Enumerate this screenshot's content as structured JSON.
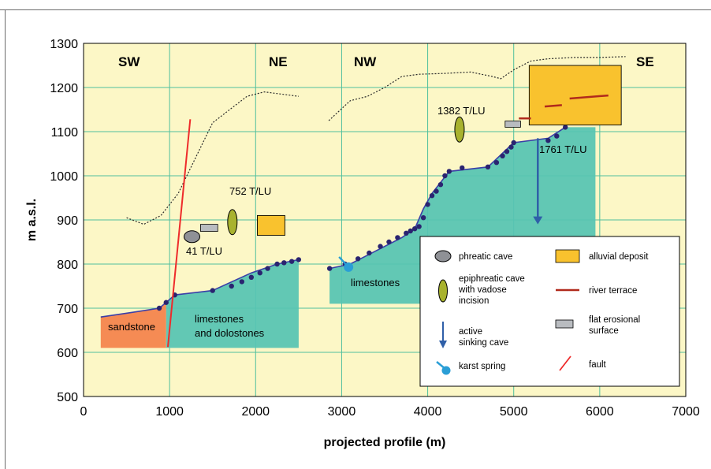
{
  "axes": {
    "xlabel": "projected profile (m)",
    "ylabel": "m a.s.l.",
    "xlim": [
      0,
      7000
    ],
    "ylim": [
      500,
      1300
    ],
    "xticks": [
      "0",
      "1000",
      "2000",
      "3000",
      "4000",
      "5000",
      "6000",
      "7000"
    ],
    "yticks": [
      "500",
      "600",
      "700",
      "800",
      "900",
      "1000",
      "1100",
      "1200",
      "1300"
    ]
  },
  "regions": {
    "sw": "SW",
    "ne": "NE",
    "nw": "NW",
    "se": "SE"
  },
  "rocks": {
    "sandstone": "sandstone",
    "limestones_dolostones_1": "limestones",
    "limestones_dolostones_2": "and dolostones",
    "limestones": "limestones"
  },
  "annotations": {
    "t41": "41 T/LU",
    "t752": "752 T/LU",
    "t1382": "1382 T/LU",
    "t1761": "1761 T/LU"
  },
  "legend": {
    "phreatic": "phreatic cave",
    "epiphreatic_1": "epiphreatic cave",
    "epiphreatic_2": "with vadose",
    "epiphreatic_3": "incision",
    "sinking_1": "active",
    "sinking_2": "sinking cave",
    "spring": "karst spring",
    "alluvial": "alluvial deposit",
    "terrace": "river terrace",
    "flat_1": "flat erosional",
    "flat_2": "surface",
    "fault": "fault"
  },
  "colors": {
    "background": "#fcf7c6",
    "grid": "#4fbf9e",
    "limestone": "#56c4b3",
    "sandstone": "#f58b54",
    "alluvial": "#f9c22e",
    "terrace": "#b12a1c",
    "cave_line": "#3b3fa8",
    "cave_dot": "#2a2470",
    "fault": "#ee2b2b",
    "phreatic": "#8f9196",
    "epiphreatic": "#a8b22e",
    "flat": "#b9bcc0",
    "sinking": "#2f5fa8",
    "spring": "#2a9ed6"
  },
  "chart_data": {
    "type": "profile",
    "surface_profile_1": {
      "x": [
        500,
        700,
        900,
        1100,
        1300,
        1500,
        1700,
        1900,
        2100,
        2300,
        2500
      ],
      "y": [
        905,
        890,
        910,
        960,
        1040,
        1120,
        1150,
        1180,
        1190,
        1185,
        1180
      ]
    },
    "surface_profile_2": {
      "x": [
        2850,
        3100,
        3300,
        3500,
        3700,
        3900,
        4200,
        4500,
        4750,
        4850,
        5000,
        5200,
        5400,
        5700,
        6000,
        6300
      ],
      "y": [
        1125,
        1170,
        1180,
        1200,
        1225,
        1230,
        1232,
        1235,
        1225,
        1220,
        1240,
        1260,
        1265,
        1268,
        1268,
        1270
      ]
    },
    "cave_profile_1": {
      "x": [
        200,
        550,
        880,
        960,
        1060,
        1500,
        1950,
        2250,
        2500
      ],
      "y": [
        680,
        690,
        700,
        713,
        730,
        740,
        780,
        800,
        810
      ]
    },
    "cave_profile_2": {
      "x": [
        2860,
        3100,
        3400,
        3700,
        3850,
        3950,
        4050,
        4250,
        4700,
        5000,
        5400,
        5600
      ],
      "y": [
        790,
        800,
        830,
        860,
        880,
        925,
        960,
        1010,
        1020,
        1075,
        1085,
        1110
      ]
    },
    "dots_1": {
      "x": [
        880,
        960,
        1060,
        1500,
        1720,
        1840,
        1950,
        2050,
        2140,
        2250,
        2330,
        2420,
        2500
      ],
      "y": [
        700,
        713,
        730,
        740,
        750,
        760,
        770,
        780,
        790,
        800,
        803,
        806,
        810
      ]
    },
    "dots_2": {
      "x": [
        2860,
        3040,
        3190,
        3320,
        3450,
        3550,
        3650,
        3750,
        3800,
        3850,
        3900,
        3950,
        4000,
        4050,
        4100,
        4150,
        4200,
        4250,
        4400,
        4700,
        4800,
        4870,
        4920,
        4970,
        5000,
        5400,
        5500,
        5600
      ],
      "y": [
        790,
        800,
        812,
        825,
        840,
        850,
        860,
        870,
        875,
        880,
        885,
        905,
        935,
        955,
        965,
        980,
        1000,
        1010,
        1018,
        1020,
        1030,
        1045,
        1055,
        1065,
        1075,
        1080,
        1090,
        1110
      ]
    },
    "limestone_polygon_1": {
      "x": [
        960,
        1060,
        1500,
        1950,
        2250,
        2500,
        2500,
        960
      ],
      "y": [
        713,
        730,
        740,
        780,
        800,
        810,
        610,
        610
      ]
    },
    "sandstone_polygon": {
      "x": [
        200,
        550,
        880,
        960,
        960,
        200
      ],
      "y": [
        680,
        690,
        700,
        713,
        610,
        610
      ]
    },
    "limestone_polygon_2": {
      "x": [
        2860,
        3100,
        3400,
        3700,
        3850,
        3950,
        4050,
        4250,
        4700,
        5000,
        5400,
        5600,
        5950,
        5950,
        2860
      ],
      "y": [
        790,
        800,
        830,
        860,
        880,
        925,
        960,
        1010,
        1020,
        1075,
        1085,
        1110,
        1110,
        710,
        710
      ]
    },
    "fault": {
      "x": [
        980,
        1240
      ],
      "y": [
        612,
        1128
      ]
    },
    "alluvial_boxes": [
      {
        "x": [
          2020,
          2340
        ],
        "y": [
          865,
          910
        ]
      },
      {
        "x": [
          5180,
          6250
        ],
        "y": [
          1115,
          1250
        ]
      }
    ],
    "terraces": [
      {
        "x": [
          5060,
          5200
        ],
        "y": [
          1130,
          1130
        ]
      },
      {
        "x": [
          5360,
          5560
        ],
        "y": [
          1157,
          1160
        ]
      },
      {
        "x": [
          5650,
          6100
        ],
        "y": [
          1175,
          1182
        ]
      }
    ],
    "flat_surfaces": [
      {
        "x": [
          1360,
          1560
        ],
        "y": [
          874,
          890
        ]
      },
      {
        "x": [
          4900,
          5080
        ],
        "y": [
          1110,
          1124
        ]
      }
    ],
    "phreatic_caves": [
      {
        "x": 1260,
        "y": 862
      }
    ],
    "epiphreatic_caves": [
      {
        "x": 1730,
        "y": 895
      },
      {
        "x": 4370,
        "y": 1105
      }
    ],
    "sinking_cave": {
      "x": [
        5280,
        5280
      ],
      "y": [
        1085,
        890
      ]
    },
    "karst_spring": {
      "x": 3080,
      "y": 793
    }
  }
}
